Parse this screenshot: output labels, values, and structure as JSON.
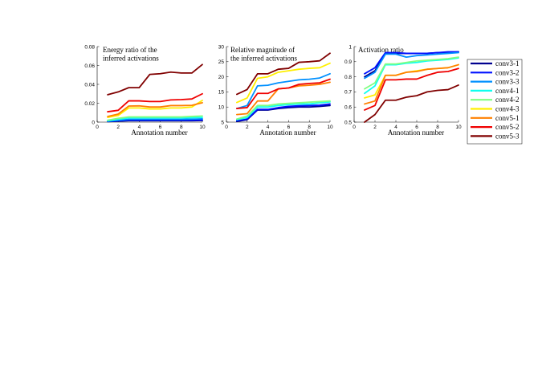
{
  "figure": {
    "legend": {
      "placement": "right",
      "entries": [
        "conv3-1",
        "conv3-2",
        "conv3-3",
        "conv4-1",
        "conv4-2",
        "conv4-3",
        "conv5-1",
        "conv5-2",
        "conv5-3"
      ]
    }
  },
  "chart_data": [
    {
      "type": "line",
      "title": "Energy ratio of the inferred activations",
      "title_lines": [
        "Energy ratio of the",
        "inferred activations"
      ],
      "xlabel": "Annotation number",
      "ylabel": "",
      "xlim": [
        0,
        10
      ],
      "ylim": [
        0,
        0.08
      ],
      "xticks": [
        0,
        2,
        4,
        6,
        8,
        10
      ],
      "yticks": [
        0,
        0.02,
        0.04,
        0.06,
        0.08
      ],
      "ytick_labels": [
        "0",
        "0.02",
        "0.04",
        "0.06",
        "0.08"
      ],
      "grid": false,
      "x": [
        1,
        2,
        3,
        4,
        5,
        6,
        7,
        8,
        9,
        10
      ],
      "series": [
        {
          "name": "conv3-1",
          "color": "#00008f",
          "values": [
            0.0005,
            0.001,
            0.0015,
            0.0015,
            0.0015,
            0.0015,
            0.0015,
            0.0015,
            0.0015,
            0.0017
          ]
        },
        {
          "name": "conv3-2",
          "color": "#0010ff",
          "values": [
            0.0008,
            0.0015,
            0.002,
            0.002,
            0.002,
            0.002,
            0.002,
            0.002,
            0.002,
            0.0022
          ]
        },
        {
          "name": "conv3-3",
          "color": "#0090ff",
          "values": [
            0.001,
            0.002,
            0.003,
            0.003,
            0.003,
            0.003,
            0.003,
            0.003,
            0.0032,
            0.0035
          ]
        },
        {
          "name": "conv4-1",
          "color": "#10ffef",
          "values": [
            0.0015,
            0.003,
            0.0045,
            0.0045,
            0.0045,
            0.0045,
            0.0045,
            0.0045,
            0.0047,
            0.005
          ]
        },
        {
          "name": "conv4-2",
          "color": "#80ff80",
          "values": [
            0.002,
            0.004,
            0.0055,
            0.0055,
            0.0055,
            0.0055,
            0.0055,
            0.0055,
            0.006,
            0.0065
          ]
        },
        {
          "name": "conv4-3",
          "color": "#ffef00",
          "values": [
            0.005,
            0.007,
            0.015,
            0.015,
            0.014,
            0.014,
            0.015,
            0.015,
            0.016,
            0.023
          ]
        },
        {
          "name": "conv5-1",
          "color": "#ff8000",
          "values": [
            0.006,
            0.0085,
            0.017,
            0.0172,
            0.016,
            0.016,
            0.0175,
            0.0175,
            0.0178,
            0.0205
          ]
        },
        {
          "name": "conv5-2",
          "color": "#ef0000",
          "values": [
            0.011,
            0.0125,
            0.0225,
            0.0225,
            0.0218,
            0.0218,
            0.0235,
            0.0238,
            0.0245,
            0.03
          ]
        },
        {
          "name": "conv5-3",
          "color": "#800000",
          "values": [
            0.029,
            0.032,
            0.0365,
            0.0365,
            0.0505,
            0.0513,
            0.053,
            0.052,
            0.052,
            0.061
          ]
        }
      ]
    },
    {
      "type": "line",
      "title": "Relative magnitude of the inferred activations",
      "title_lines": [
        "Relative magnitude of",
        "the inferred activations"
      ],
      "xlabel": "Annotation number",
      "ylabel": "",
      "xlim": [
        0,
        10
      ],
      "ylim": [
        5,
        30
      ],
      "xticks": [
        0,
        2,
        4,
        6,
        8,
        10
      ],
      "yticks": [
        5,
        10,
        15,
        20,
        25,
        30
      ],
      "ytick_labels": [
        "5",
        "10",
        "15",
        "20",
        "25",
        "30"
      ],
      "grid": false,
      "x": [
        1,
        2,
        3,
        4,
        5,
        6,
        7,
        8,
        9,
        10
      ],
      "series": [
        {
          "name": "conv3-1",
          "color": "#00008f",
          "values": [
            5.2,
            5.8,
            9.0,
            9.0,
            9.5,
            9.8,
            10.0,
            10.0,
            10.2,
            10.5
          ]
        },
        {
          "name": "conv3-2",
          "color": "#0010ff",
          "values": [
            5.5,
            6.0,
            9.2,
            9.2,
            9.8,
            10.2,
            10.4,
            10.5,
            10.6,
            11.0
          ]
        },
        {
          "name": "conv3-3",
          "color": "#0090ff",
          "values": [
            9.5,
            10.5,
            17.0,
            17.2,
            18.0,
            18.5,
            19.0,
            19.2,
            19.6,
            21.0
          ]
        },
        {
          "name": "conv4-1",
          "color": "#10ffef",
          "values": [
            5.8,
            6.5,
            10.0,
            10.0,
            10.5,
            10.8,
            11.0,
            11.0,
            11.4,
            11.7
          ]
        },
        {
          "name": "conv4-2",
          "color": "#80ff80",
          "values": [
            6.0,
            7.0,
            10.5,
            10.5,
            11.0,
            11.2,
            11.4,
            11.6,
            11.8,
            12.0
          ]
        },
        {
          "name": "conv4-3",
          "color": "#ffef00",
          "values": [
            11.5,
            13.0,
            19.5,
            20.0,
            21.5,
            22.0,
            22.5,
            22.8,
            23.0,
            24.5
          ]
        },
        {
          "name": "conv5-1",
          "color": "#ff8000",
          "values": [
            7.5,
            7.8,
            12.0,
            12.0,
            16.0,
            16.3,
            17.0,
            17.2,
            17.5,
            18.2
          ]
        },
        {
          "name": "conv5-2",
          "color": "#ef0000",
          "values": [
            9.5,
            9.8,
            14.5,
            14.5,
            16.0,
            16.3,
            17.5,
            17.8,
            18.0,
            19.2
          ]
        },
        {
          "name": "conv5-3",
          "color": "#800000",
          "values": [
            14.2,
            15.8,
            21.0,
            21.0,
            22.5,
            22.8,
            24.8,
            25.0,
            25.3,
            27.8
          ]
        }
      ]
    },
    {
      "type": "line",
      "title": "Activation ratio",
      "title_lines": [
        "Activation ratio"
      ],
      "xlabel": "Annotation number",
      "ylabel": "",
      "xlim": [
        0,
        10
      ],
      "ylim": [
        0.5,
        1
      ],
      "xticks": [
        0,
        2,
        4,
        6,
        8,
        10
      ],
      "yticks": [
        0.5,
        0.6,
        0.7,
        0.8,
        0.9,
        1
      ],
      "ytick_labels": [
        "0.5",
        "0.6",
        "0.7",
        "0.8",
        "0.9",
        "1"
      ],
      "grid": false,
      "x": [
        1,
        2,
        3,
        4,
        5,
        6,
        7,
        8,
        9,
        10
      ],
      "series": [
        {
          "name": "conv3-1",
          "color": "#00008f",
          "values": [
            0.8,
            0.84,
            0.955,
            0.955,
            0.955,
            0.955,
            0.955,
            0.96,
            0.96,
            0.965
          ]
        },
        {
          "name": "conv3-2",
          "color": "#0010ff",
          "values": [
            0.82,
            0.86,
            0.96,
            0.96,
            0.955,
            0.955,
            0.955,
            0.96,
            0.965,
            0.965
          ]
        },
        {
          "name": "conv3-3",
          "color": "#0090ff",
          "values": [
            0.79,
            0.83,
            0.95,
            0.95,
            0.93,
            0.94,
            0.945,
            0.95,
            0.955,
            0.96
          ]
        },
        {
          "name": "conv4-1",
          "color": "#10ffef",
          "values": [
            0.69,
            0.74,
            0.88,
            0.88,
            0.89,
            0.895,
            0.905,
            0.91,
            0.915,
            0.925
          ]
        },
        {
          "name": "conv4-2",
          "color": "#80ff80",
          "values": [
            0.72,
            0.76,
            0.885,
            0.885,
            0.895,
            0.905,
            0.91,
            0.915,
            0.92,
            0.93
          ]
        },
        {
          "name": "conv4-3",
          "color": "#ffef00",
          "values": [
            0.66,
            0.68,
            0.81,
            0.81,
            0.83,
            0.84,
            0.85,
            0.855,
            0.86,
            0.88
          ]
        },
        {
          "name": "conv5-1",
          "color": "#ff8000",
          "values": [
            0.62,
            0.64,
            0.81,
            0.81,
            0.83,
            0.835,
            0.85,
            0.855,
            0.86,
            0.88
          ]
        },
        {
          "name": "conv5-2",
          "color": "#ef0000",
          "values": [
            0.58,
            0.61,
            0.78,
            0.78,
            0.785,
            0.785,
            0.81,
            0.83,
            0.835,
            0.855
          ]
        },
        {
          "name": "conv5-3",
          "color": "#800000",
          "values": [
            0.5,
            0.55,
            0.645,
            0.645,
            0.665,
            0.675,
            0.7,
            0.71,
            0.715,
            0.745
          ]
        }
      ]
    }
  ]
}
